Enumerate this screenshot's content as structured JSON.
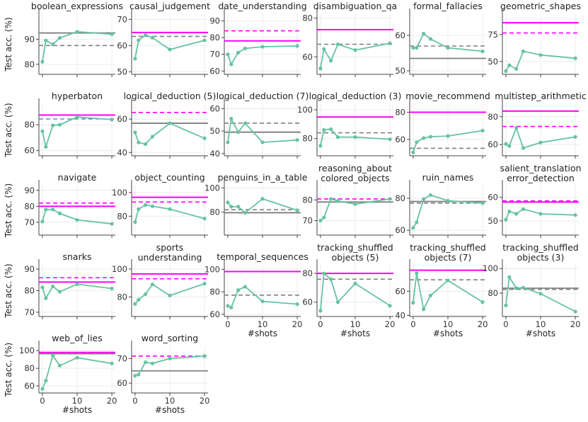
{
  "figure": {
    "ylabel": "Test acc. (%)",
    "xlabel": "#shots",
    "colors": {
      "series": "#66c2a5",
      "solid_magenta": "#ff00ff",
      "dashed_magenta": "#ff00ff",
      "solid_gray": "#808080",
      "dashed_gray": "#808080"
    }
  },
  "chart_data": [
    {
      "title": "boolean_expressions",
      "type": "line",
      "x": [
        0,
        1,
        3,
        5,
        10,
        20
      ],
      "values": [
        81,
        89.5,
        88,
        90.5,
        93,
        92
      ],
      "ylim": [
        76,
        100
      ],
      "yticks": [
        80,
        90
      ],
      "xticks": [
        0,
        10,
        20
      ],
      "refs": {
        "dashed_gray": 87.5,
        "solid_gray": 92.5
      }
    },
    {
      "title": "causal_judgement",
      "type": "line",
      "x": [
        0,
        1,
        3,
        5,
        10,
        20
      ],
      "values": [
        55,
        62,
        64,
        63,
        58.5,
        62
      ],
      "ylim": [
        49,
        72
      ],
      "yticks": [
        50,
        60,
        70
      ],
      "xticks": [
        0,
        10,
        20
      ],
      "refs": {
        "solid_magenta": 65,
        "dashed_gray": 63.5
      }
    },
    {
      "title": "date_understanding",
      "type": "line",
      "x": [
        0,
        1,
        3,
        5,
        10,
        20
      ],
      "values": [
        70,
        64,
        71,
        73.5,
        74.5,
        75
      ],
      "ylim": [
        58,
        94
      ],
      "yticks": [
        60,
        70,
        80,
        90
      ],
      "xticks": [
        0,
        10,
        20
      ],
      "refs": {
        "dashed_magenta": 84,
        "solid_magenta": 78
      }
    },
    {
      "title": "disambiguation_qa",
      "type": "line",
      "x": [
        0,
        1,
        3,
        5,
        10,
        20
      ],
      "values": [
        54,
        64,
        58,
        66.5,
        63.5,
        67
      ],
      "ylim": [
        51,
        82
      ],
      "yticks": [
        60,
        80
      ],
      "xticks": [
        0,
        10,
        20
      ],
      "refs": {
        "solid_magenta": 74,
        "dashed_gray": 66.5
      }
    },
    {
      "title": "formal_fallacies",
      "type": "line",
      "x": [
        0,
        1,
        3,
        5,
        10,
        20
      ],
      "values": [
        56.5,
        56.5,
        60.5,
        59,
        56.5,
        55.5
      ],
      "ylim": [
        49,
        66
      ],
      "yticks": [
        50,
        60
      ],
      "xticks": [
        0,
        10,
        20
      ],
      "refs": {
        "dashed_gray": 57,
        "solid_gray": 53.5
      }
    },
    {
      "title": "geometric_shapes",
      "type": "line",
      "x": [
        0,
        1,
        3,
        5,
        10,
        20
      ],
      "values": [
        41,
        46.5,
        43,
        59.5,
        56,
        53
      ],
      "ylim": [
        38,
        94
      ],
      "yticks": [
        50,
        75
      ],
      "xticks": [
        0,
        10,
        20
      ],
      "refs": {
        "solid_magenta": 86,
        "dashed_magenta": 76.5
      }
    },
    {
      "title": "hyperbaton",
      "type": "line",
      "x": [
        0,
        1,
        3,
        5,
        10,
        20
      ],
      "values": [
        75,
        63,
        79.5,
        80,
        86,
        84
      ],
      "ylim": [
        56,
        96
      ],
      "yticks": [
        60,
        80
      ],
      "xticks": [
        0,
        10,
        20
      ],
      "refs": {
        "solid_magenta": 87.5,
        "dashed_gray": 84.5
      }
    },
    {
      "title": "logical_deduction (5)",
      "type": "line",
      "x": [
        0,
        1,
        3,
        5,
        10,
        20
      ],
      "values": [
        52,
        46,
        45,
        49.5,
        57.5,
        48.5
      ],
      "ylim": [
        38,
        69
      ],
      "yticks": [
        40,
        60
      ],
      "xticks": [
        0,
        10,
        20
      ],
      "refs": {
        "dashed_magenta": 64,
        "solid_gray": 57.5
      }
    },
    {
      "title": "logical_deduction (7)",
      "type": "line",
      "x": [
        0,
        1,
        3,
        5,
        10,
        20
      ],
      "values": [
        45,
        55.5,
        49.5,
        53.5,
        45,
        46
      ],
      "ylim": [
        39,
        62
      ],
      "yticks": [
        40,
        50,
        60
      ],
      "xticks": [
        0,
        10,
        20
      ],
      "refs": {
        "dashed_gray": 53.5,
        "solid_gray": 49.5
      }
    },
    {
      "title": "logical_deduction (3)",
      "type": "line",
      "x": [
        0,
        1,
        3,
        5,
        10,
        20
      ],
      "values": [
        75,
        86,
        86.5,
        81,
        81,
        79.5
      ],
      "ylim": [
        68,
        104
      ],
      "yticks": [
        80,
        100
      ],
      "xticks": [
        0,
        10,
        20
      ],
      "refs": {
        "solid_magenta": 95,
        "dashed_gray": 84
      }
    },
    {
      "title": "movie_recommend",
      "type": "line",
      "x": [
        0,
        1,
        3,
        5,
        10,
        20
      ],
      "values": [
        50.5,
        58,
        61,
        62,
        62.5,
        66.5
      ],
      "ylim": [
        48,
        86
      ],
      "yticks": [
        60,
        80
      ],
      "xticks": [
        0,
        10,
        20
      ],
      "refs": {
        "solid_magenta": 80,
        "dashed_gray": 53.5
      }
    },
    {
      "title": "multistep_arithmetic",
      "type": "line",
      "x": [
        0,
        1,
        3,
        5,
        10,
        20
      ],
      "values": [
        60.5,
        59,
        72,
        57.5,
        61.5,
        65.5
      ],
      "ylim": [
        52,
        89
      ],
      "yticks": [
        60,
        80
      ],
      "xticks": [
        0,
        10,
        20
      ],
      "refs": {
        "solid_magenta": 84,
        "dashed_magenta": 73
      }
    },
    {
      "title": "navigate",
      "type": "line",
      "x": [
        0,
        1,
        3,
        5,
        10,
        20
      ],
      "values": [
        70.5,
        78,
        78,
        75.5,
        71.5,
        69
      ],
      "ylim": [
        62,
        93
      ],
      "yticks": [
        70,
        80,
        90
      ],
      "xticks": [
        0,
        10,
        20
      ],
      "refs": {
        "dashed_magenta": 82,
        "solid_magenta": 80
      }
    },
    {
      "title": "object_counting",
      "type": "line",
      "x": [
        0,
        1,
        3,
        5,
        10,
        20
      ],
      "values": [
        75,
        86,
        89.5,
        88.5,
        86,
        78
      ],
      "ylim": [
        64,
        106
      ],
      "yticks": [
        80,
        100
      ],
      "xticks": [
        0,
        10,
        20
      ],
      "refs": {
        "solid_magenta": 96,
        "dashed_magenta": 92
      }
    },
    {
      "title": "penguins_in_a_table",
      "type": "line",
      "x": [
        0,
        1,
        3,
        5,
        10,
        20
      ],
      "values": [
        88,
        84.5,
        84.5,
        79.5,
        91,
        81.5
      ],
      "ylim": [
        61,
        102
      ],
      "yticks": [
        80,
        100
      ],
      "xticks": [
        0,
        10,
        20
      ],
      "refs": {
        "dashed_gray": 82,
        "solid_gray": 79.5
      }
    },
    {
      "title": "reasoning_about\ncolored_objects",
      "type": "line",
      "x": [
        0,
        1,
        3,
        5,
        10,
        20
      ],
      "values": [
        70,
        71.5,
        80.5,
        79.5,
        78,
        80.5
      ],
      "ylim": [
        63,
        87
      ],
      "yticks": [
        70,
        80
      ],
      "xticks": [
        0,
        10,
        20
      ],
      "refs": {
        "dashed_magenta": 80.5,
        "solid_gray": 79
      }
    },
    {
      "title": "ruin_names",
      "type": "line",
      "x": [
        0,
        1,
        3,
        5,
        10,
        20
      ],
      "values": [
        61.5,
        65,
        79.5,
        82,
        78.5,
        77
      ],
      "ylim": [
        57,
        88
      ],
      "yticks": [
        60,
        80
      ],
      "xticks": [
        0,
        10,
        20
      ],
      "refs": {
        "solid_gray": 78,
        "dashed_gray": 77
      }
    },
    {
      "title": "salient_translation\nerror_detection",
      "type": "line",
      "x": [
        0,
        1,
        3,
        5,
        10,
        20
      ],
      "values": [
        50.5,
        54,
        53,
        55,
        53,
        52.5
      ],
      "ylim": [
        44,
        65
      ],
      "yticks": [
        50,
        60
      ],
      "xticks": [
        0,
        10,
        20
      ],
      "refs": {
        "dashed_magenta": 58.5,
        "solid_magenta": 58
      }
    },
    {
      "title": "snarks",
      "type": "line",
      "x": [
        0,
        1,
        3,
        5,
        10,
        20
      ],
      "values": [
        81.5,
        76.5,
        82,
        79.5,
        83,
        81
      ],
      "ylim": [
        68,
        92
      ],
      "yticks": [
        70,
        80,
        90
      ],
      "xticks": [
        0,
        10,
        20
      ],
      "refs": {
        "dashed_magenta": 86,
        "solid_magenta": 84
      }
    },
    {
      "title": "sports\nunderstanding",
      "type": "line",
      "x": [
        0,
        1,
        3,
        5,
        10,
        20
      ],
      "values": [
        75,
        78,
        82,
        89,
        81,
        89.5
      ],
      "ylim": [
        66,
        103
      ],
      "yticks": [
        80,
        100
      ],
      "xticks": [
        0,
        10,
        20
      ],
      "refs": {
        "solid_magenta": 96.5,
        "dashed_magenta": 93
      }
    },
    {
      "title": "temporal_sequences",
      "type": "line",
      "x": [
        0,
        1,
        3,
        5,
        10,
        20
      ],
      "values": [
        67.5,
        66,
        81.5,
        84.5,
        71.5,
        69
      ],
      "ylim": [
        58,
        104
      ],
      "yticks": [
        60,
        80,
        100
      ],
      "xticks": [
        0,
        10,
        20
      ],
      "refs": {
        "solid_magenta": 98,
        "dashed_gray": 77
      }
    },
    {
      "title": "tracking_shuffled\nobjects (5)",
      "type": "line",
      "x": [
        0,
        1,
        3,
        5,
        10,
        20
      ],
      "values": [
        54,
        80,
        76,
        60,
        73,
        57.5
      ],
      "ylim": [
        50,
        86
      ],
      "yticks": [
        60,
        80
      ],
      "xticks": [
        0,
        10,
        20
      ],
      "refs": {
        "solid_magenta": 80,
        "dashed_gray": 76
      }
    },
    {
      "title": "tracking_shuffled\nobjects (7)",
      "type": "line",
      "x": [
        0,
        1,
        3,
        5,
        10,
        20
      ],
      "values": [
        50.5,
        75,
        45,
        56.5,
        69,
        51
      ],
      "ylim": [
        39,
        82
      ],
      "yticks": [
        40,
        60
      ],
      "xticks": [
        0,
        10,
        20
      ],
      "refs": {
        "solid_magenta": 77.5,
        "dashed_gray": 69.5
      }
    },
    {
      "title": "tracking_shuffled\nobjects (3)",
      "type": "line",
      "x": [
        0,
        1,
        3,
        5,
        10,
        20
      ],
      "values": [
        70,
        93,
        84,
        84.5,
        79.5,
        65
      ],
      "ylim": [
        61,
        103
      ],
      "yticks": [
        80,
        100
      ],
      "xticks": [
        0,
        10,
        20
      ],
      "refs": {
        "solid_gray": 84,
        "dashed_gray": 83
      }
    },
    {
      "title": "web_of_lies",
      "type": "line",
      "x": [
        0,
        1,
        3,
        5,
        10,
        20
      ],
      "values": [
        56.5,
        66,
        94.5,
        83,
        92,
        85.5
      ],
      "ylim": [
        52,
        105
      ],
      "yticks": [
        60,
        80,
        100
      ],
      "xticks": [
        0,
        10,
        20
      ],
      "refs": {
        "solid_magenta": 98,
        "dashed_magenta": 97,
        "solid_gray": 96.5
      }
    },
    {
      "title": "word_sorting",
      "type": "line",
      "x": [
        0,
        1,
        3,
        5,
        10,
        20
      ],
      "values": [
        63,
        63.5,
        68.5,
        68,
        70,
        71
      ],
      "ylim": [
        56,
        75
      ],
      "yticks": [
        60,
        70
      ],
      "xticks": [
        0,
        10,
        20
      ],
      "refs": {
        "dashed_magenta": 71,
        "solid_gray": 65
      }
    }
  ]
}
